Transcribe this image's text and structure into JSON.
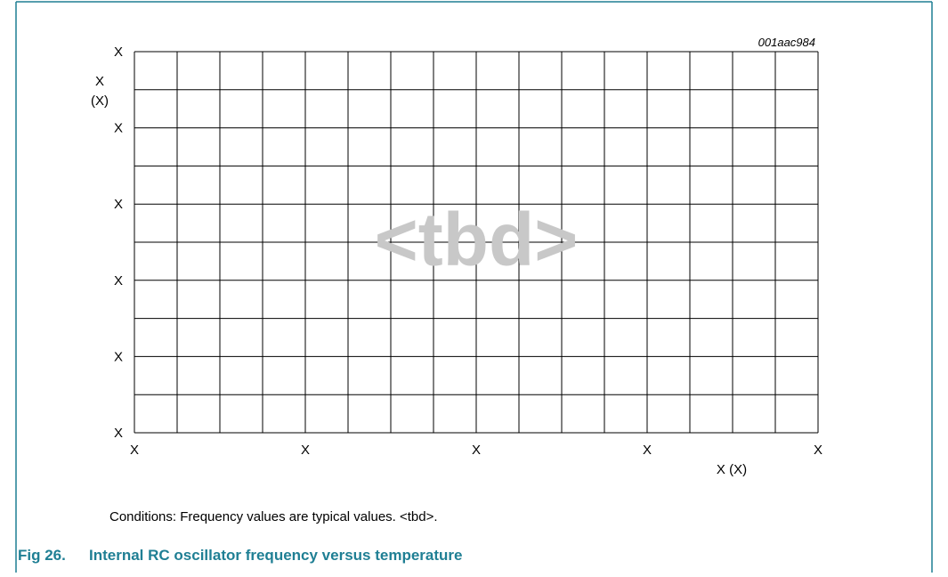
{
  "figure": {
    "figure_id": "001aac984",
    "y_axis": {
      "title_lines": [
        "X",
        "(X)"
      ],
      "tick_labels": [
        "X",
        "X",
        "X",
        "X",
        "X",
        "X"
      ]
    },
    "x_axis": {
      "title": "X (X)",
      "tick_labels": [
        "X",
        "X",
        "X",
        "X",
        "X"
      ]
    },
    "watermark": "<tbd>",
    "note": "Conditions: Frequency values are typical values. <tbd>.",
    "caption": {
      "number": "Fig 26.",
      "title": "Internal RC oscillator frequency versus temperature"
    }
  }
}
